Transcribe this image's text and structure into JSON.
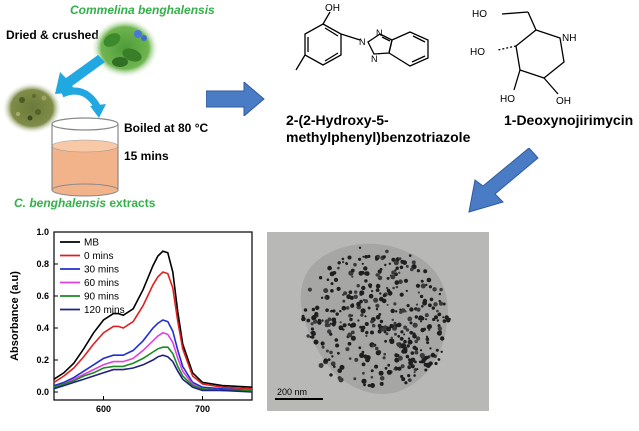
{
  "plant": {
    "name": "Commelina benghalensis",
    "step_label": "Dried & crushed",
    "boil_label": "Boiled at 80 °C",
    "time_label": "15 mins",
    "extract_label_italic": "C. benghalensis",
    "extract_label_rest": " extracts"
  },
  "compounds": [
    {
      "name_line1": "2-(2-Hydroxy-5-",
      "name_line2": "methylphenyl)benzotriazole",
      "atom_labels": [
        "OH",
        "N",
        "N",
        "N"
      ]
    },
    {
      "name": "1-Deoxynojirimycin",
      "atom_labels": [
        "HO",
        "NH",
        "HO",
        "HO",
        "OH"
      ]
    }
  ],
  "colors": {
    "arrow": "#4a7cc5",
    "arrow_dark": "#2f5a9e",
    "plant_text": "#33b04a",
    "liquid": "#f2b38a"
  },
  "micrograph": {
    "scale_label": "200 nm"
  },
  "chart_data": {
    "type": "line",
    "xlabel": "",
    "ylabel": "Absorbance (a.u)",
    "xlim": [
      550,
      750
    ],
    "ylim": [
      -0.05,
      1.0
    ],
    "x_ticks": [
      600,
      700
    ],
    "y_ticks": [
      0.0,
      0.2,
      0.4,
      0.6,
      0.8,
      1.0
    ],
    "y_tick_labels": [
      "0.0",
      "0.2",
      "0.4",
      "0.6",
      "0.8",
      "1.0"
    ],
    "legend_position": "top-left",
    "x": [
      550,
      560,
      570,
      580,
      590,
      600,
      610,
      615,
      620,
      630,
      640,
      650,
      655,
      660,
      665,
      670,
      675,
      680,
      690,
      700,
      720,
      750
    ],
    "series": [
      {
        "name": "MB",
        "color": "#000000",
        "values": [
          0.08,
          0.12,
          0.18,
          0.27,
          0.37,
          0.45,
          0.49,
          0.49,
          0.48,
          0.52,
          0.64,
          0.79,
          0.85,
          0.88,
          0.87,
          0.75,
          0.5,
          0.3,
          0.12,
          0.06,
          0.04,
          0.03
        ]
      },
      {
        "name": "0 mins",
        "color": "#e02020",
        "values": [
          0.06,
          0.1,
          0.15,
          0.22,
          0.3,
          0.37,
          0.41,
          0.41,
          0.4,
          0.44,
          0.54,
          0.67,
          0.72,
          0.75,
          0.74,
          0.65,
          0.44,
          0.27,
          0.1,
          0.05,
          0.03,
          0.02
        ]
      },
      {
        "name": "30 mins",
        "color": "#2030d0",
        "values": [
          0.04,
          0.06,
          0.09,
          0.13,
          0.17,
          0.21,
          0.23,
          0.23,
          0.23,
          0.26,
          0.32,
          0.4,
          0.43,
          0.45,
          0.44,
          0.38,
          0.26,
          0.16,
          0.06,
          0.03,
          0.02,
          0.01
        ]
      },
      {
        "name": "60 mins",
        "color": "#e040e0",
        "values": [
          0.03,
          0.05,
          0.08,
          0.11,
          0.14,
          0.17,
          0.19,
          0.19,
          0.19,
          0.21,
          0.26,
          0.32,
          0.35,
          0.37,
          0.36,
          0.31,
          0.21,
          0.13,
          0.05,
          0.02,
          0.01,
          0.01
        ]
      },
      {
        "name": "90 mins",
        "color": "#1a8a20",
        "values": [
          0.03,
          0.05,
          0.07,
          0.1,
          0.12,
          0.15,
          0.16,
          0.16,
          0.16,
          0.18,
          0.21,
          0.25,
          0.27,
          0.28,
          0.28,
          0.24,
          0.16,
          0.1,
          0.04,
          0.02,
          0.01,
          0.01
        ]
      },
      {
        "name": "120 mins",
        "color": "#202080",
        "values": [
          0.02,
          0.04,
          0.06,
          0.08,
          0.1,
          0.12,
          0.14,
          0.14,
          0.14,
          0.15,
          0.17,
          0.2,
          0.22,
          0.23,
          0.22,
          0.19,
          0.13,
          0.08,
          0.03,
          0.01,
          0.01,
          0.0
        ]
      }
    ]
  }
}
